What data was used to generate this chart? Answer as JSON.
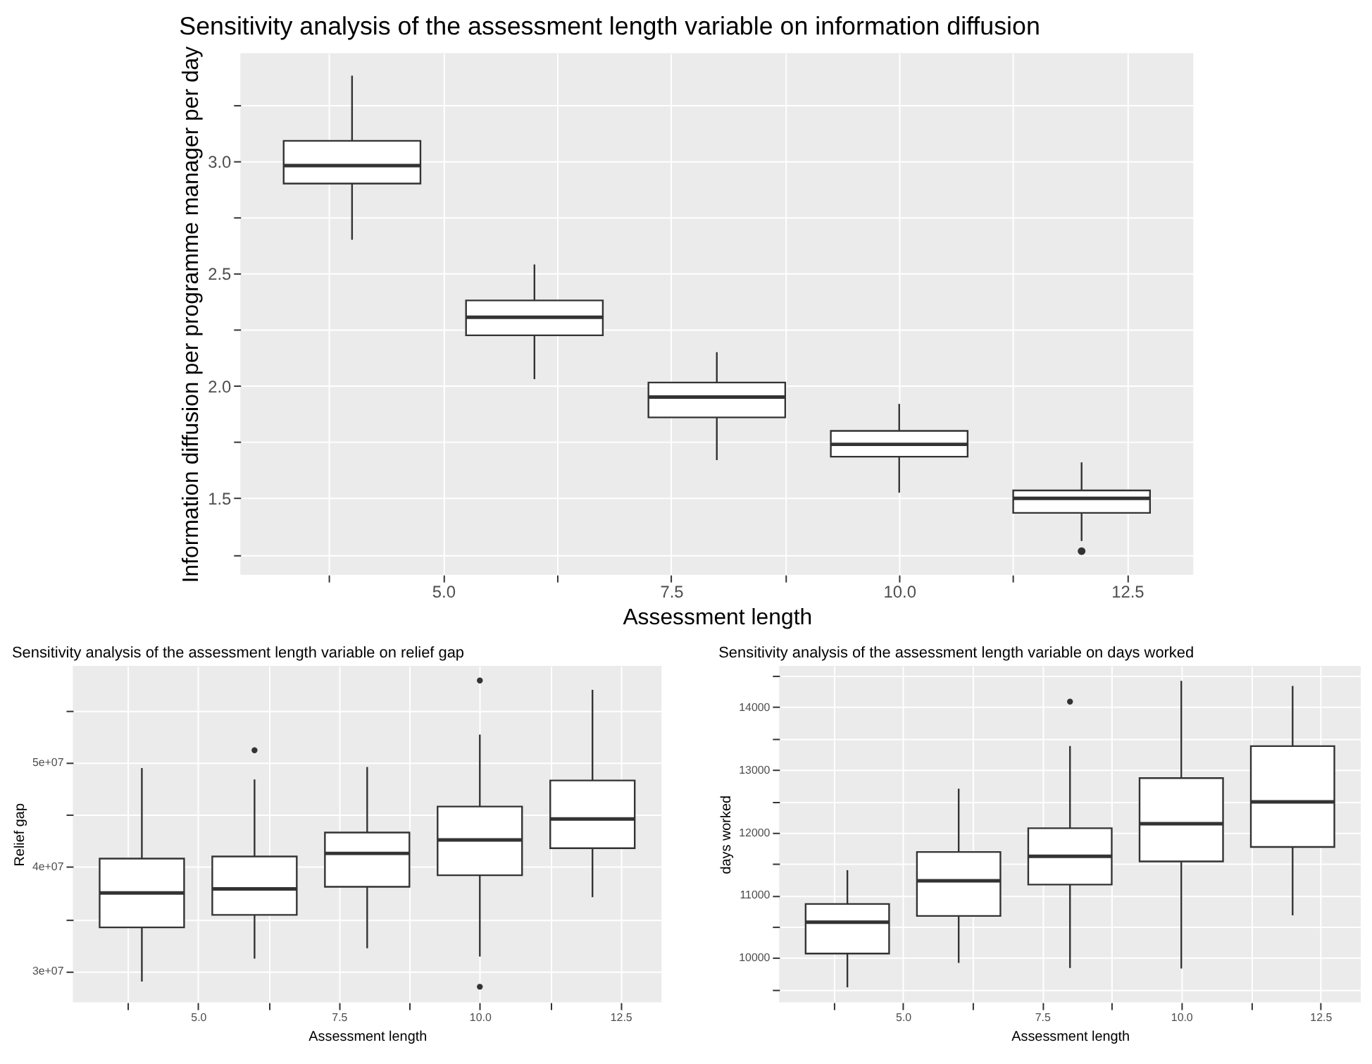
{
  "chart_data": [
    {
      "type": "box",
      "title": "Sensitivity analysis of the assessment length variable on information diffusion",
      "xlabel": "Assessment length",
      "ylabel": "Information diffusion per programme manager per day",
      "x": [
        4,
        6,
        8,
        10,
        12
      ],
      "boxes": [
        {
          "low": 2.65,
          "q1": 2.9,
          "median": 2.98,
          "q3": 3.09,
          "high": 3.38
        },
        {
          "low": 2.03,
          "q1": 2.225,
          "median": 2.305,
          "q3": 2.38,
          "high": 2.54
        },
        {
          "low": 1.67,
          "q1": 1.86,
          "median": 1.95,
          "q3": 2.015,
          "high": 2.15
        },
        {
          "low": 1.525,
          "q1": 1.685,
          "median": 1.74,
          "q3": 1.8,
          "high": 1.92
        },
        {
          "low": 1.31,
          "q1": 1.435,
          "median": 1.5,
          "q3": 1.535,
          "high": 1.66,
          "outliers": [
            1.265
          ]
        }
      ],
      "xlim": [
        2.775,
        13.225
      ],
      "xticks": [
        {
          "value": 3.75,
          "label": null
        },
        {
          "value": 5,
          "label": "5.0"
        },
        {
          "value": 6.25,
          "label": null
        },
        {
          "value": 7.5,
          "label": "7.5"
        },
        {
          "value": 8.75,
          "label": null
        },
        {
          "value": 10,
          "label": "10.0"
        },
        {
          "value": 11.25,
          "label": null
        },
        {
          "value": 12.5,
          "label": "12.5"
        }
      ],
      "ylim": [
        1.16,
        3.48
      ],
      "yticks": [
        {
          "value": 1.25,
          "label": null
        },
        {
          "value": 1.5,
          "label": "1.5"
        },
        {
          "value": 1.75,
          "label": null
        },
        {
          "value": 2,
          "label": "2.0"
        },
        {
          "value": 2.25,
          "label": null
        },
        {
          "value": 2.5,
          "label": "2.5"
        },
        {
          "value": 2.75,
          "label": null
        },
        {
          "value": 3,
          "label": "3.0"
        },
        {
          "value": 3.25,
          "label": null
        }
      ],
      "grid": true
    },
    {
      "type": "box",
      "title": "Sensitivity analysis of the assessment length variable on relief gap",
      "xlabel": "Assessment length",
      "ylabel": "Relief gap",
      "x": [
        4,
        6,
        8,
        10,
        12
      ],
      "boxes": [
        {
          "low": 29000000,
          "q1": 34200000,
          "median": 37500000,
          "q3": 40800000,
          "high": 49500000
        },
        {
          "low": 31200000,
          "q1": 35400000,
          "median": 37900000,
          "q3": 41000000,
          "high": 48400000,
          "outliers": [
            51200000
          ]
        },
        {
          "low": 32200000,
          "q1": 38100000,
          "median": 41300000,
          "q3": 43300000,
          "high": 49600000
        },
        {
          "low": 31400000,
          "q1": 39200000,
          "median": 42600000,
          "q3": 45800000,
          "high": 52700000,
          "outliers": [
            57900000,
            28500000
          ]
        },
        {
          "low": 37100000,
          "q1": 41800000,
          "median": 44600000,
          "q3": 48300000,
          "high": 57000000
        }
      ],
      "xlim": [
        2.775,
        13.225
      ],
      "xticks": [
        {
          "value": 3.75,
          "label": null
        },
        {
          "value": 5,
          "label": "5.0"
        },
        {
          "value": 6.25,
          "label": null
        },
        {
          "value": 7.5,
          "label": "7.5"
        },
        {
          "value": 8.75,
          "label": null
        },
        {
          "value": 10,
          "label": "10.0"
        },
        {
          "value": 11.25,
          "label": null
        },
        {
          "value": 12.5,
          "label": "12.5"
        }
      ],
      "ylim": [
        27000000,
        59300000
      ],
      "yticks": [
        {
          "value": 30000000,
          "label": "3e+07"
        },
        {
          "value": 35000000,
          "label": null
        },
        {
          "value": 40000000,
          "label": "4e+07"
        },
        {
          "value": 45000000,
          "label": null
        },
        {
          "value": 50000000,
          "label": "5e+07"
        },
        {
          "value": 55000000,
          "label": null
        }
      ],
      "grid": true
    },
    {
      "type": "box",
      "title": "Sensitivity analysis of the assessment length variable on days worked",
      "xlabel": "Assessment length",
      "ylabel": "days worked",
      "x": [
        4,
        6,
        8,
        10,
        12
      ],
      "boxes": [
        {
          "low": 9530,
          "q1": 10070,
          "median": 10570,
          "q3": 10860,
          "high": 11400
        },
        {
          "low": 9920,
          "q1": 10670,
          "median": 11230,
          "q3": 11690,
          "high": 12700
        },
        {
          "low": 9840,
          "q1": 11170,
          "median": 11620,
          "q3": 12070,
          "high": 13380,
          "outliers": [
            14090
          ]
        },
        {
          "low": 9830,
          "q1": 11540,
          "median": 12140,
          "q3": 12870,
          "high": 14420
        },
        {
          "low": 10680,
          "q1": 11770,
          "median": 12490,
          "q3": 13380,
          "high": 14340
        }
      ],
      "xlim": [
        2.775,
        13.225
      ],
      "xticks": [
        {
          "value": 3.75,
          "label": null
        },
        {
          "value": 5,
          "label": "5.0"
        },
        {
          "value": 6.25,
          "label": null
        },
        7.5,
        {
          "value": 8.75,
          "label": null
        },
        {
          "value": 10,
          "label": "10.0"
        },
        {
          "value": 11.25,
          "label": null
        },
        12.5
      ],
      "ylim": [
        9290,
        14660
      ],
      "yticks": [
        {
          "value": 9500,
          "label": null
        },
        10000,
        {
          "value": 10500,
          "label": null
        },
        11000,
        {
          "value": 11500,
          "label": null
        },
        12000,
        {
          "value": 12500,
          "label": null
        },
        13000,
        {
          "value": 13500,
          "label": null
        },
        14000,
        {
          "value": 14500,
          "label": null
        }
      ],
      "grid": true
    }
  ]
}
